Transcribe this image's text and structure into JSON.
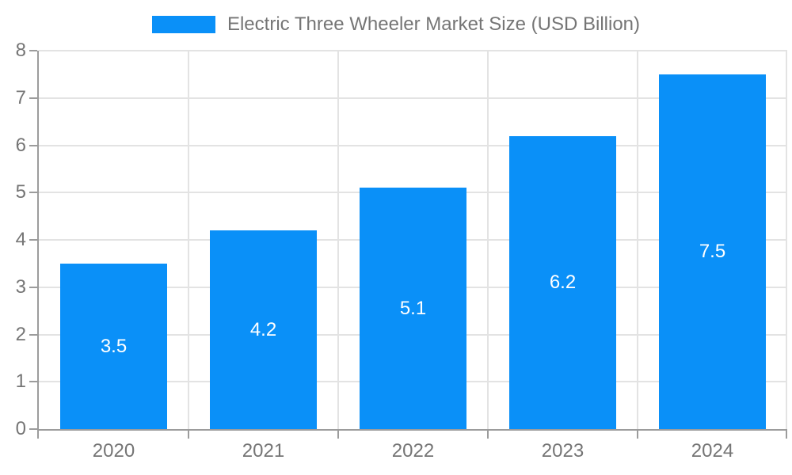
{
  "chart_data": {
    "type": "bar",
    "categories": [
      "2020",
      "2021",
      "2022",
      "2023",
      "2024"
    ],
    "series": [
      {
        "name": "Electric Three Wheeler Market Size (USD Billion)",
        "values": [
          3.5,
          4.2,
          5.1,
          6.2,
          7.5
        ]
      }
    ],
    "xlabel": "",
    "ylabel": "",
    "ylim": [
      0,
      8
    ],
    "yticks": [
      0,
      1,
      2,
      3,
      4,
      5,
      6,
      7,
      8
    ],
    "grid": true,
    "legend_position": "top",
    "value_label_position": "inside-center",
    "colors": {
      "bar": "#0a90f8",
      "value_label": "#ffffff",
      "axis": "#9c9c9c",
      "grid": "#e3e3e3",
      "tick_label": "#757575",
      "legend_text": "#757575",
      "background": "#ffffff"
    }
  }
}
